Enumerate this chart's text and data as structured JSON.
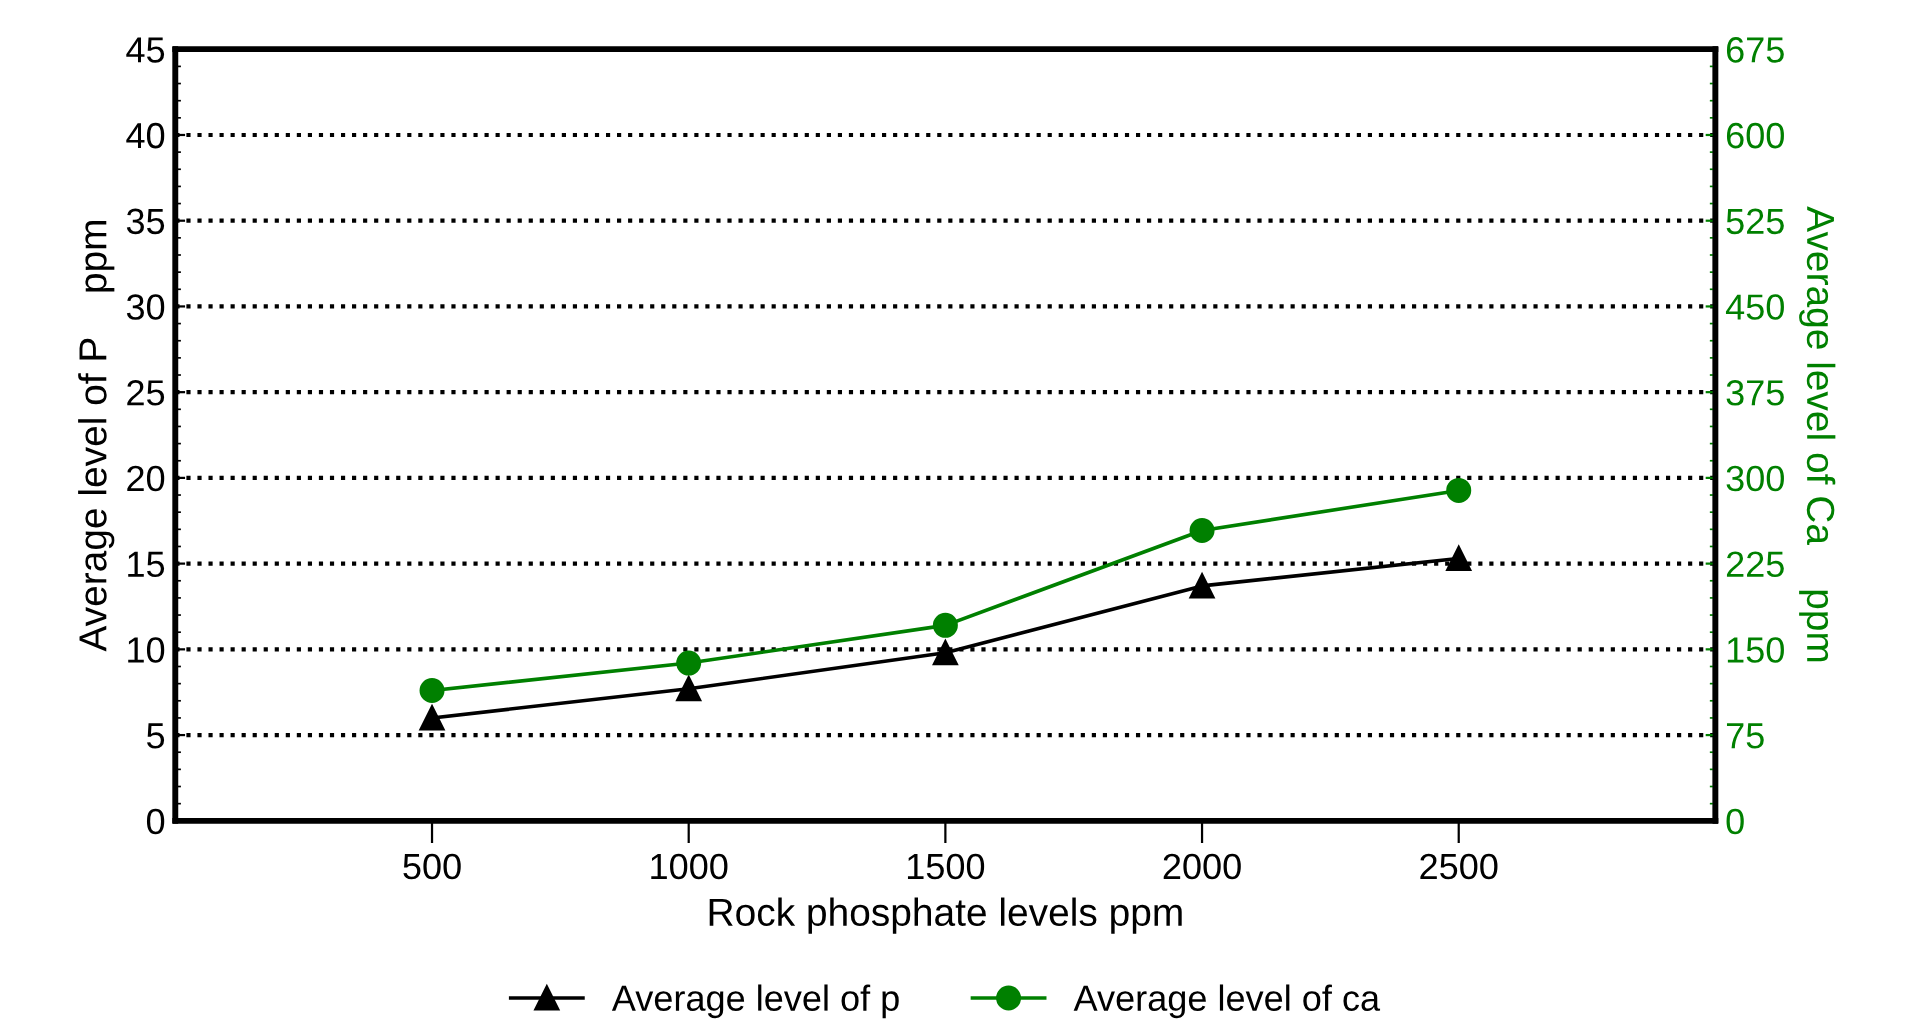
{
  "chart_data": {
    "type": "line",
    "xlabel": "Rock phosphate levels ppm",
    "ylabel": "Average level of P    ppm",
    "y2label": "Average level of Ca    ppm",
    "x": [
      500,
      1000,
      1500,
      2000,
      2500
    ],
    "xlim": [
      0,
      3000
    ],
    "xticks": [
      500,
      1000,
      1500,
      2000,
      2500
    ],
    "ylim": [
      0,
      45
    ],
    "yticks": [
      0,
      5,
      10,
      15,
      20,
      25,
      30,
      35,
      40,
      45
    ],
    "y2lim": [
      0,
      675
    ],
    "y2ticks": [
      0,
      75,
      150,
      225,
      300,
      375,
      450,
      525,
      600,
      675
    ],
    "series": [
      {
        "name": "Average level of p",
        "color": "#000000",
        "marker": "triangle",
        "values": [
          6.0,
          7.7,
          9.8,
          13.7,
          15.3
        ]
      },
      {
        "name": "Average level of ca",
        "color": "#008000",
        "marker": "circle",
        "axis": "y2",
        "values": [
          114,
          138,
          171,
          254,
          289
        ]
      }
    ],
    "grid": "y",
    "legend": "bottom",
    "line_style": "solid"
  }
}
